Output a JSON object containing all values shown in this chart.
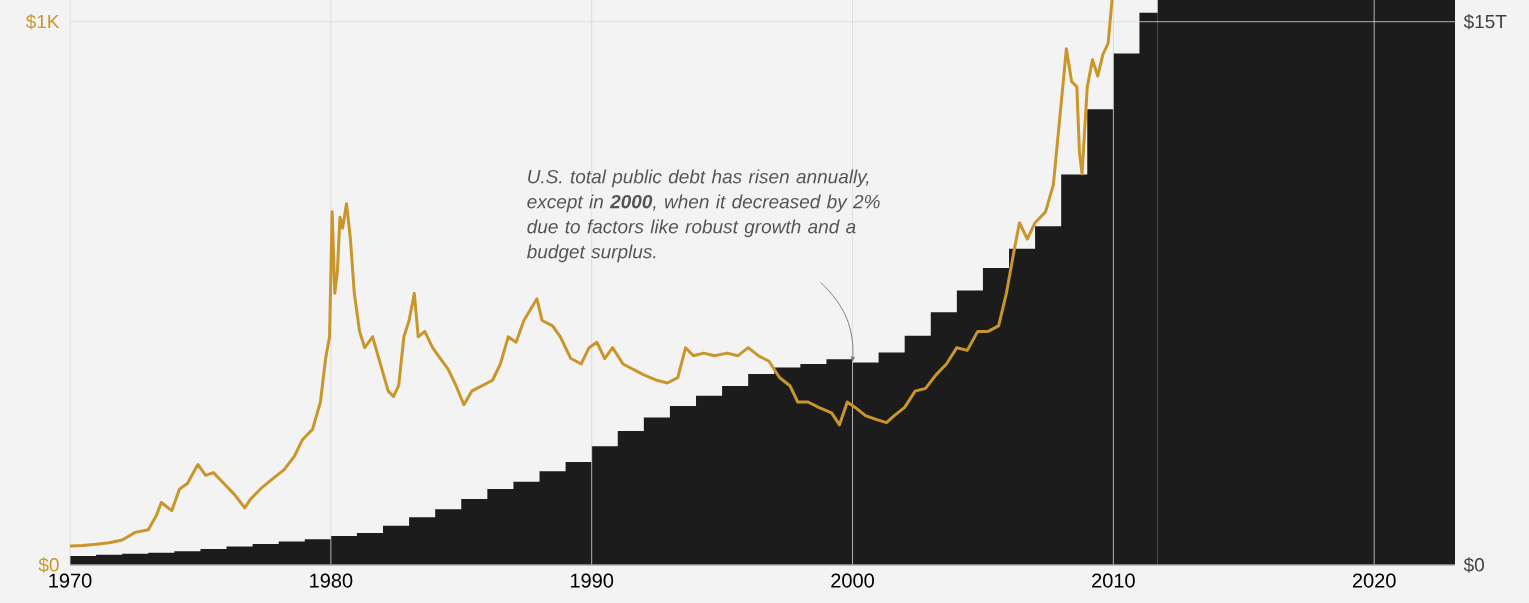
{
  "chart_data": {
    "type": "line",
    "xlim": [
      1970,
      2023.1
    ],
    "xticks": [
      1970,
      1980,
      1990,
      2000,
      2010,
      2020
    ],
    "ylim": [
      0,
      1040
    ],
    "yticks": [
      {
        "value": 0,
        "label": "$0"
      },
      {
        "value": 1000,
        "label": "$1K"
      }
    ],
    "y2lim": [
      0,
      15.6
    ],
    "y2ticks": [
      {
        "value": 0,
        "label": "$0"
      },
      {
        "value": 15,
        "label": "$15T"
      }
    ],
    "grid": true,
    "annotations": [
      {
        "text": "U.S. total public debt has risen annually, except in **2000**, when it decreased by 2% due to factors like robust growth and a budget surplus.",
        "x": 2000,
        "y": 373
      }
    ],
    "bands": [
      {
        "axis": "x",
        "from": 2011.7,
        "to": 2023.1,
        "color": "#1c1c1c"
      }
    ],
    "series": [
      {
        "type": "area",
        "axis": "y2",
        "color": "#1c1c1c",
        "x": [
          1970,
          1971,
          1972,
          1973,
          1974,
          1975,
          1976,
          1977,
          1978,
          1979,
          1980,
          1981,
          1982,
          1983,
          1984,
          1985,
          1986,
          1987,
          1988,
          1989,
          1990,
          1991,
          1992,
          1993,
          1994,
          1995,
          1996,
          1997,
          1998,
          1999,
          2000,
          2001,
          2002,
          2003,
          2004,
          2005,
          2006,
          2007,
          2008,
          2009,
          2010,
          2011,
          2011.7
        ],
        "values": [
          0.25,
          0.28,
          0.31,
          0.34,
          0.38,
          0.44,
          0.51,
          0.58,
          0.65,
          0.71,
          0.8,
          0.88,
          1.08,
          1.32,
          1.54,
          1.82,
          2.1,
          2.3,
          2.59,
          2.84,
          3.28,
          3.7,
          4.07,
          4.39,
          4.67,
          4.94,
          5.27,
          5.45,
          5.55,
          5.68,
          5.59,
          5.87,
          6.33,
          6.98,
          7.58,
          8.2,
          8.73,
          9.35,
          10.78,
          12.58,
          14.12,
          15.25,
          15.25
        ]
      },
      {
        "color": "#c9962c",
        "x": [
          1970.0,
          1970.5,
          1971.0,
          1971.5,
          1972.0,
          1972.5,
          1973.0,
          1973.3,
          1973.5,
          1973.9,
          1974.2,
          1974.5,
          1974.9,
          1975.2,
          1975.5,
          1975.9,
          1976.3,
          1976.7,
          1976.9,
          1977.3,
          1977.8,
          1978.2,
          1978.6,
          1978.9,
          1979.3,
          1979.6,
          1979.8,
          1979.95,
          1980.05,
          1980.15,
          1980.25,
          1980.35,
          1980.45,
          1980.6,
          1980.75,
          1980.9,
          1981.1,
          1981.3,
          1981.6,
          1981.9,
          1982.2,
          1982.4,
          1982.6,
          1982.8,
          1983.0,
          1983.2,
          1983.35,
          1983.6,
          1983.9,
          1984.2,
          1984.5,
          1984.8,
          1985.1,
          1985.4,
          1985.8,
          1986.2,
          1986.5,
          1986.8,
          1987.1,
          1987.4,
          1987.9,
          1988.1,
          1988.5,
          1988.8,
          1989.2,
          1989.6,
          1989.9,
          1990.2,
          1990.5,
          1990.8,
          1991.2,
          1991.6,
          1992.0,
          1992.5,
          1992.9,
          1993.3,
          1993.6,
          1993.9,
          1994.3,
          1994.7,
          1995.2,
          1995.6,
          1996.0,
          1996.4,
          1996.8,
          1997.2,
          1997.6,
          1997.9,
          1998.3,
          1998.7,
          1999.2,
          1999.5,
          1999.8,
          2000.1,
          2000.5,
          2000.9,
          2001.3,
          2001.6,
          2002.0,
          2002.4,
          2002.8,
          2003.2,
          2003.6,
          2004.0,
          2004.4,
          2004.8,
          2005.2,
          2005.6,
          2005.9,
          2006.2,
          2006.4,
          2006.7,
          2007.0,
          2007.4,
          2007.7,
          2007.9,
          2008.1,
          2008.2,
          2008.4,
          2008.6,
          2008.7,
          2008.8,
          2009.0,
          2009.2,
          2009.4,
          2009.6,
          2009.8,
          2009.95
        ],
        "values": [
          35,
          36,
          38,
          41,
          46,
          60,
          65,
          90,
          115,
          100,
          140,
          150,
          185,
          165,
          170,
          150,
          130,
          105,
          120,
          140,
          160,
          175,
          200,
          230,
          250,
          300,
          380,
          420,
          650,
          500,
          540,
          640,
          620,
          665,
          600,
          500,
          430,
          400,
          420,
          370,
          320,
          310,
          330,
          420,
          450,
          500,
          420,
          430,
          400,
          380,
          360,
          330,
          295,
          320,
          330,
          340,
          370,
          420,
          410,
          450,
          490,
          450,
          440,
          420,
          380,
          370,
          400,
          410,
          380,
          400,
          370,
          360,
          350,
          340,
          335,
          345,
          400,
          385,
          390,
          385,
          390,
          385,
          400,
          385,
          375,
          345,
          330,
          300,
          300,
          290,
          280,
          258,
          300,
          290,
          275,
          268,
          262,
          275,
          290,
          320,
          325,
          350,
          370,
          400,
          395,
          430,
          430,
          440,
          500,
          580,
          630,
          600,
          630,
          650,
          700,
          800,
          900,
          950,
          890,
          880,
          760,
          720,
          880,
          930,
          900,
          940,
          960,
          1040
        ]
      }
    ]
  }
}
